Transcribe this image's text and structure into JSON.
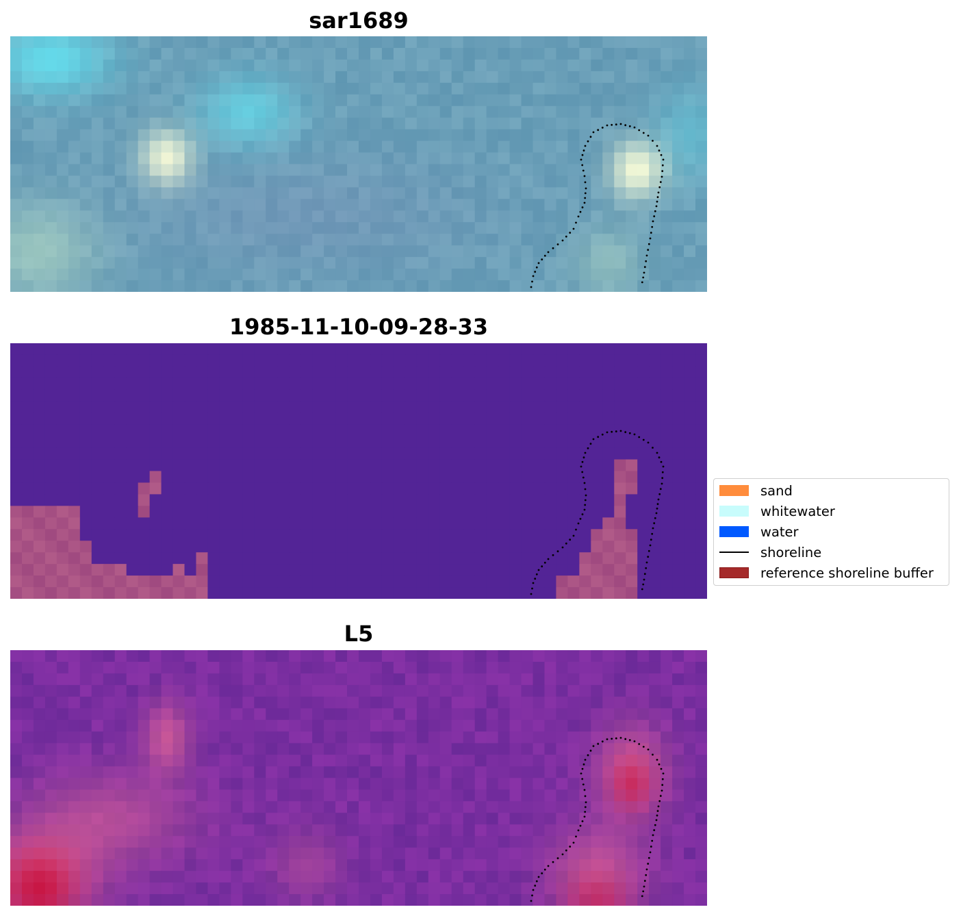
{
  "panels": [
    {
      "title": "sar1689",
      "kind": "rgb"
    },
    {
      "title": "1985-11-10-09-28-33",
      "kind": "classification"
    },
    {
      "title": "L5",
      "kind": "index"
    }
  ],
  "legend": {
    "items": [
      {
        "label": "sand",
        "type": "patch",
        "color": "#ff8c3c"
      },
      {
        "label": "whitewater",
        "type": "patch",
        "color": "#c8fcfc"
      },
      {
        "label": "water",
        "type": "patch",
        "color": "#0059ff"
      },
      {
        "label": "shoreline",
        "type": "line",
        "color": "#000000"
      },
      {
        "label": "reference shoreline buffer",
        "type": "patch",
        "color": "#a52a2a",
        "edge": "#8a1a1a"
      }
    ]
  },
  "colors": {
    "rgb_water": "#6a9fb8",
    "class_background": "#532496",
    "class_buffer": "#b05a88",
    "index_base": "#7a2ea0",
    "index_high": "#c8103c"
  }
}
